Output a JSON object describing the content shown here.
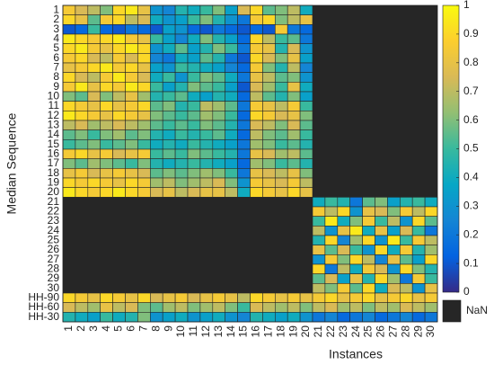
{
  "chart_data": {
    "type": "heatmap",
    "x_label": "Instances",
    "y_label": "Median Sequence",
    "categories": [
      "1",
      "2",
      "3",
      "4",
      "5",
      "6",
      "7",
      "8",
      "9",
      "10",
      "11",
      "12",
      "13",
      "14",
      "15",
      "16",
      "17",
      "18",
      "19",
      "20",
      "21",
      "22",
      "23",
      "24",
      "25",
      "26",
      "27",
      "28",
      "29",
      "30"
    ],
    "y_categories": [
      "1",
      "2",
      "3",
      "4",
      "5",
      "6",
      "7",
      "8",
      "9",
      "10",
      "11",
      "12",
      "13",
      "14",
      "15",
      "16",
      "17",
      "18",
      "19",
      "20",
      "21",
      "22",
      "23",
      "24",
      "25",
      "26",
      "27",
      "28",
      "29",
      "30",
      "HH-90",
      "HH-60",
      "HH-30"
    ],
    "values": [
      [
        0.85,
        0.75,
        0.7,
        0.6,
        0.9,
        0.95,
        0.8,
        0.3,
        0.25,
        0.45,
        0.4,
        0.5,
        0.6,
        0.35,
        0.75,
        0.9,
        0.55,
        0.6,
        0.7,
        0.4,
        null,
        null,
        null,
        null,
        null,
        null,
        null,
        null,
        null,
        null
      ],
      [
        0.9,
        0.8,
        0.55,
        0.85,
        0.9,
        0.7,
        0.75,
        0.4,
        0.3,
        0.35,
        0.5,
        0.6,
        0.45,
        0.3,
        0.2,
        0.85,
        0.9,
        0.6,
        0.7,
        0.8,
        null,
        null,
        null,
        null,
        null,
        null,
        null,
        null,
        null,
        null
      ],
      [
        0.1,
        0.15,
        0.5,
        0.15,
        0.1,
        0.2,
        0.15,
        0.1,
        0.35,
        0.3,
        0.15,
        0.1,
        0.2,
        0.15,
        0.1,
        0.15,
        0.1,
        0.85,
        0.2,
        0.15,
        null,
        null,
        null,
        null,
        null,
        null,
        null,
        null,
        null,
        null
      ],
      [
        0.95,
        0.9,
        0.85,
        0.9,
        0.95,
        0.85,
        0.8,
        0.5,
        0.35,
        0.25,
        0.4,
        0.6,
        0.45,
        0.35,
        0.15,
        0.9,
        0.7,
        0.5,
        0.55,
        0.2,
        null,
        null,
        null,
        null,
        null,
        null,
        null,
        null,
        null,
        null
      ],
      [
        0.9,
        0.95,
        0.85,
        0.8,
        0.9,
        0.95,
        0.9,
        0.3,
        0.4,
        0.55,
        0.35,
        0.45,
        0.6,
        0.5,
        0.2,
        0.85,
        0.8,
        0.45,
        0.75,
        0.3,
        null,
        null,
        null,
        null,
        null,
        null,
        null,
        null,
        null,
        null
      ],
      [
        0.85,
        0.9,
        0.75,
        0.7,
        0.85,
        0.75,
        0.9,
        0.25,
        0.2,
        0.4,
        0.35,
        0.55,
        0.45,
        0.2,
        0.1,
        0.9,
        0.75,
        0.6,
        0.8,
        0.35,
        null,
        null,
        null,
        null,
        null,
        null,
        null,
        null,
        null,
        null
      ],
      [
        0.8,
        0.85,
        0.9,
        0.95,
        0.85,
        0.9,
        0.8,
        0.35,
        0.3,
        0.5,
        0.45,
        0.4,
        0.35,
        0.25,
        0.15,
        0.85,
        0.6,
        0.45,
        0.7,
        0.25,
        null,
        null,
        null,
        null,
        null,
        null,
        null,
        null,
        null,
        null
      ],
      [
        0.9,
        0.75,
        0.7,
        0.85,
        0.95,
        0.85,
        0.75,
        0.4,
        0.5,
        0.3,
        0.5,
        0.6,
        0.55,
        0.4,
        0.2,
        0.8,
        0.7,
        0.55,
        0.6,
        0.3,
        null,
        null,
        null,
        null,
        null,
        null,
        null,
        null,
        null,
        null
      ],
      [
        0.85,
        0.95,
        0.8,
        0.9,
        0.85,
        0.95,
        0.9,
        0.5,
        0.35,
        0.45,
        0.6,
        0.55,
        0.5,
        0.35,
        0.1,
        0.75,
        0.65,
        0.5,
        0.8,
        0.4,
        null,
        null,
        null,
        null,
        null,
        null,
        null,
        null,
        null,
        null
      ],
      [
        0.6,
        0.55,
        0.75,
        0.6,
        0.7,
        0.8,
        0.65,
        0.45,
        0.5,
        0.55,
        0.4,
        0.35,
        0.45,
        0.4,
        0.15,
        0.7,
        0.55,
        0.45,
        0.6,
        0.35,
        null,
        null,
        null,
        null,
        null,
        null,
        null,
        null,
        null,
        null
      ],
      [
        0.9,
        0.85,
        0.8,
        0.9,
        0.8,
        0.85,
        0.9,
        0.55,
        0.6,
        0.45,
        0.5,
        0.7,
        0.65,
        0.55,
        0.2,
        0.85,
        0.8,
        0.7,
        0.85,
        0.5,
        null,
        null,
        null,
        null,
        null,
        null,
        null,
        null,
        null,
        null
      ],
      [
        0.95,
        0.9,
        0.85,
        0.8,
        0.9,
        0.85,
        0.8,
        0.6,
        0.55,
        0.5,
        0.55,
        0.65,
        0.6,
        0.5,
        0.15,
        0.9,
        0.85,
        0.75,
        0.8,
        0.6,
        null,
        null,
        null,
        null,
        null,
        null,
        null,
        null,
        null,
        null
      ],
      [
        0.7,
        0.75,
        0.65,
        0.7,
        0.75,
        0.7,
        0.65,
        0.55,
        0.5,
        0.55,
        0.5,
        0.6,
        0.55,
        0.45,
        0.2,
        0.75,
        0.7,
        0.6,
        0.75,
        0.55,
        null,
        null,
        null,
        null,
        null,
        null,
        null,
        null,
        null,
        null
      ],
      [
        0.55,
        0.6,
        0.5,
        0.6,
        0.65,
        0.55,
        0.6,
        0.45,
        0.4,
        0.5,
        0.45,
        0.5,
        0.55,
        0.4,
        0.15,
        0.7,
        0.6,
        0.55,
        0.65,
        0.5,
        null,
        null,
        null,
        null,
        null,
        null,
        null,
        null,
        null,
        null
      ],
      [
        0.5,
        0.55,
        0.6,
        0.5,
        0.55,
        0.6,
        0.5,
        0.4,
        0.45,
        0.4,
        0.5,
        0.45,
        0.4,
        0.35,
        0.2,
        0.65,
        0.6,
        0.5,
        0.55,
        0.45,
        null,
        null,
        null,
        null,
        null,
        null,
        null,
        null,
        null,
        null
      ],
      [
        0.85,
        0.9,
        0.8,
        0.85,
        0.75,
        0.8,
        0.85,
        0.5,
        0.55,
        0.5,
        0.6,
        0.55,
        0.5,
        0.45,
        0.2,
        0.8,
        0.75,
        0.65,
        0.7,
        0.55,
        null,
        null,
        null,
        null,
        null,
        null,
        null,
        null,
        null,
        null
      ],
      [
        0.6,
        0.55,
        0.65,
        0.6,
        0.55,
        0.5,
        0.6,
        0.45,
        0.4,
        0.45,
        0.5,
        0.45,
        0.4,
        0.35,
        0.15,
        0.65,
        0.6,
        0.5,
        0.55,
        0.45,
        null,
        null,
        null,
        null,
        null,
        null,
        null,
        null,
        null,
        null
      ],
      [
        0.8,
        0.85,
        0.75,
        0.8,
        0.85,
        0.8,
        0.75,
        0.55,
        0.6,
        0.55,
        0.6,
        0.65,
        0.6,
        0.5,
        0.2,
        0.8,
        0.75,
        0.7,
        0.8,
        0.6,
        null,
        null,
        null,
        null,
        null,
        null,
        null,
        null,
        null,
        null
      ],
      [
        0.9,
        0.85,
        0.9,
        0.85,
        0.8,
        0.9,
        0.85,
        0.65,
        0.7,
        0.6,
        0.65,
        0.7,
        0.75,
        0.6,
        0.3,
        0.85,
        0.8,
        0.75,
        0.85,
        0.7,
        null,
        null,
        null,
        null,
        null,
        null,
        null,
        null,
        null,
        null
      ],
      [
        0.95,
        0.9,
        0.85,
        0.9,
        0.95,
        0.9,
        0.85,
        0.75,
        0.8,
        0.7,
        0.75,
        0.8,
        0.8,
        0.7,
        0.4,
        0.9,
        0.85,
        0.8,
        0.9,
        0.8,
        null,
        null,
        null,
        null,
        null,
        null,
        null,
        null,
        null,
        null
      ],
      [
        null,
        null,
        null,
        null,
        null,
        null,
        null,
        null,
        null,
        null,
        null,
        null,
        null,
        null,
        null,
        null,
        null,
        null,
        null,
        null,
        0.4,
        0.5,
        0.45,
        0.2,
        0.55,
        0.6,
        0.35,
        0.45,
        0.5,
        0.4
      ],
      [
        null,
        null,
        null,
        null,
        null,
        null,
        null,
        null,
        null,
        null,
        null,
        null,
        null,
        null,
        null,
        null,
        null,
        null,
        null,
        null,
        0.85,
        0.7,
        0.9,
        0.3,
        0.8,
        0.75,
        0.6,
        0.85,
        0.7,
        0.9
      ],
      [
        null,
        null,
        null,
        null,
        null,
        null,
        null,
        null,
        null,
        null,
        null,
        null,
        null,
        null,
        null,
        null,
        null,
        null,
        null,
        null,
        0.5,
        0.95,
        0.4,
        0.6,
        0.85,
        0.5,
        0.7,
        0.3,
        0.9,
        0.55
      ],
      [
        null,
        null,
        null,
        null,
        null,
        null,
        null,
        null,
        null,
        null,
        null,
        null,
        null,
        null,
        null,
        null,
        null,
        null,
        null,
        null,
        0.7,
        0.3,
        0.8,
        0.95,
        0.4,
        0.8,
        0.35,
        0.75,
        0.5,
        0.2
      ],
      [
        null,
        null,
        null,
        null,
        null,
        null,
        null,
        null,
        null,
        null,
        null,
        null,
        null,
        null,
        null,
        null,
        null,
        null,
        null,
        null,
        0.45,
        0.9,
        0.25,
        0.65,
        0.9,
        0.3,
        0.95,
        0.5,
        0.85,
        0.7
      ],
      [
        null,
        null,
        null,
        null,
        null,
        null,
        null,
        null,
        null,
        null,
        null,
        null,
        null,
        null,
        null,
        null,
        null,
        null,
        null,
        null,
        0.8,
        0.55,
        0.75,
        0.5,
        0.3,
        0.9,
        0.4,
        0.85,
        0.45,
        0.65
      ],
      [
        null,
        null,
        null,
        null,
        null,
        null,
        null,
        null,
        null,
        null,
        null,
        null,
        null,
        null,
        null,
        null,
        null,
        null,
        null,
        null,
        0.3,
        0.85,
        0.6,
        0.9,
        0.7,
        0.25,
        0.8,
        0.55,
        0.35,
        0.9
      ],
      [
        null,
        null,
        null,
        null,
        null,
        null,
        null,
        null,
        null,
        null,
        null,
        null,
        null,
        null,
        null,
        null,
        null,
        null,
        null,
        null,
        0.9,
        0.2,
        0.7,
        0.4,
        0.85,
        0.75,
        0.3,
        0.9,
        0.6,
        0.45
      ],
      [
        null,
        null,
        null,
        null,
        null,
        null,
        null,
        null,
        null,
        null,
        null,
        null,
        null,
        null,
        null,
        null,
        null,
        null,
        null,
        null,
        0.55,
        0.75,
        0.35,
        0.8,
        0.45,
        0.9,
        0.65,
        0.2,
        0.85,
        0.5
      ],
      [
        null,
        null,
        null,
        null,
        null,
        null,
        null,
        null,
        null,
        null,
        null,
        null,
        null,
        null,
        null,
        null,
        null,
        null,
        null,
        null,
        0.7,
        0.6,
        0.85,
        0.55,
        0.9,
        0.4,
        0.75,
        0.7,
        0.3,
        0.8
      ],
      [
        0.9,
        0.85,
        0.8,
        0.9,
        0.85,
        0.8,
        0.9,
        0.75,
        0.8,
        0.85,
        0.75,
        0.8,
        0.85,
        0.8,
        0.7,
        0.9,
        0.85,
        0.8,
        0.85,
        0.8,
        0.85,
        0.9,
        0.8,
        0.85,
        0.9,
        0.8,
        0.85,
        0.9,
        0.8,
        0.85
      ],
      [
        0.75,
        0.7,
        0.65,
        0.8,
        0.7,
        0.75,
        0.6,
        0.55,
        0.65,
        0.7,
        0.6,
        0.65,
        0.7,
        0.6,
        0.5,
        0.75,
        0.7,
        0.65,
        0.7,
        0.6,
        0.7,
        0.75,
        0.65,
        0.7,
        0.6,
        0.7,
        0.65,
        0.75,
        0.7,
        0.65
      ],
      [
        0.45,
        0.4,
        0.35,
        0.5,
        0.4,
        0.45,
        0.6,
        0.3,
        0.35,
        0.4,
        0.3,
        0.35,
        0.4,
        0.3,
        0.25,
        0.45,
        0.4,
        0.35,
        0.4,
        0.3,
        0.2,
        0.25,
        0.15,
        0.2,
        0.25,
        0.15,
        0.2,
        0.25,
        0.15,
        0.2
      ]
    ],
    "colormap": "parula",
    "clim": [
      0,
      1
    ],
    "cticks": [
      0,
      0.1,
      0.2,
      0.3,
      0.4,
      0.5,
      0.6,
      0.7,
      0.8,
      0.9,
      1
    ],
    "nan_label": "NaN",
    "nan_color": "#262626"
  }
}
